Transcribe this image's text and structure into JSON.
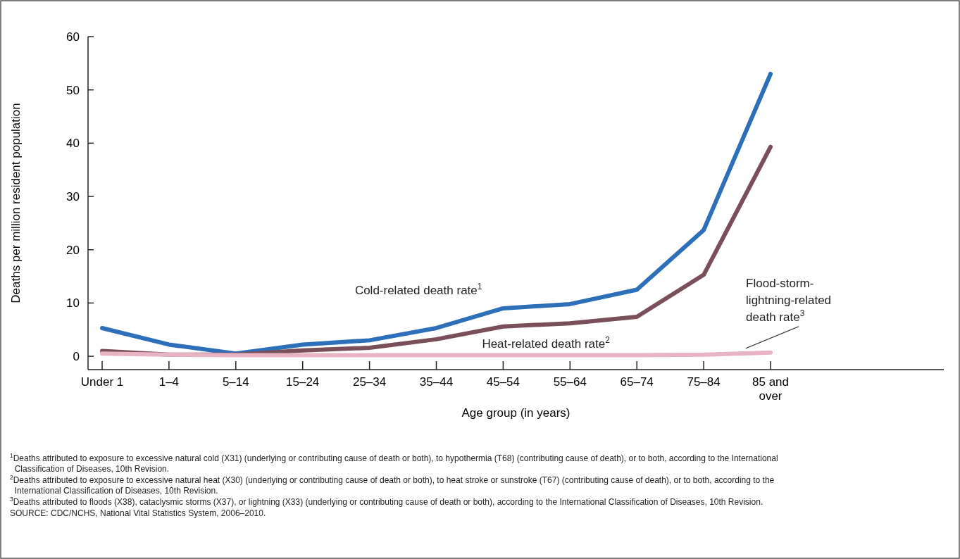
{
  "chart_data": {
    "type": "line",
    "xlabel": "Age group (in years)",
    "ylabel": "Deaths per million resident population",
    "categories": [
      "Under 1",
      "1–4",
      "5–14",
      "15–24",
      "25–34",
      "35–44",
      "45–54",
      "55–64",
      "65–74",
      "75–84",
      "85 and over"
    ],
    "ylim": [
      -2.5,
      60
    ],
    "yticks": [
      0,
      10,
      20,
      30,
      40,
      50,
      60
    ],
    "grid": false,
    "legend": false,
    "marker": "none",
    "line_style": "solid",
    "series": [
      {
        "name": "Cold-related death rate$^{1}$",
        "color": "#2e6fba",
        "values": [
          5.3,
          2.2,
          0.5,
          2.2,
          3.0,
          5.3,
          9.0,
          9.8,
          12.5,
          23.7,
          53
        ]
      },
      {
        "name": "Heat-related death rate$^{2}$",
        "color": "#7a4f5a",
        "values": [
          1.0,
          0.3,
          0.3,
          1.1,
          1.6,
          3.2,
          5.6,
          6.2,
          7.4,
          15.3,
          39.3
        ]
      },
      {
        "name": "Flood-storm-lightning-related death rate$^{3}$",
        "color": "#e8b4c4",
        "values": [
          0.5,
          0.3,
          0.2,
          0.2,
          0.2,
          0.2,
          0.2,
          0.2,
          0.2,
          0.3,
          0.7
        ]
      }
    ],
    "annotations": [
      "$^{1}$Deaths attributed to exposure to excessive natural cold (X31) (underlying or contributing cause of death or both), to hypothermia (T68) (contributing cause of death), or to both, according to the International Classification of Diseases, 10th Revision.",
      "$^{2}$Deaths attributed to exposure to excessive natural heat (X30) (underlying or contributing cause of death or both), to heat stroke or sunstroke (T67) (contributing cause of death), or to both, according to the International Classification of Diseases, 10th Revision.",
      "$^{3}$Deaths attributed to floods (X38), cataclysmic storms (X37), or lightning (X33) (underlying or contributing cause of death or both), according to the International Classification of Diseases, 10th Revision.",
      "SOURCE: CDC/NCHS, National Vital Statistics System, 2006–2010."
    ]
  }
}
